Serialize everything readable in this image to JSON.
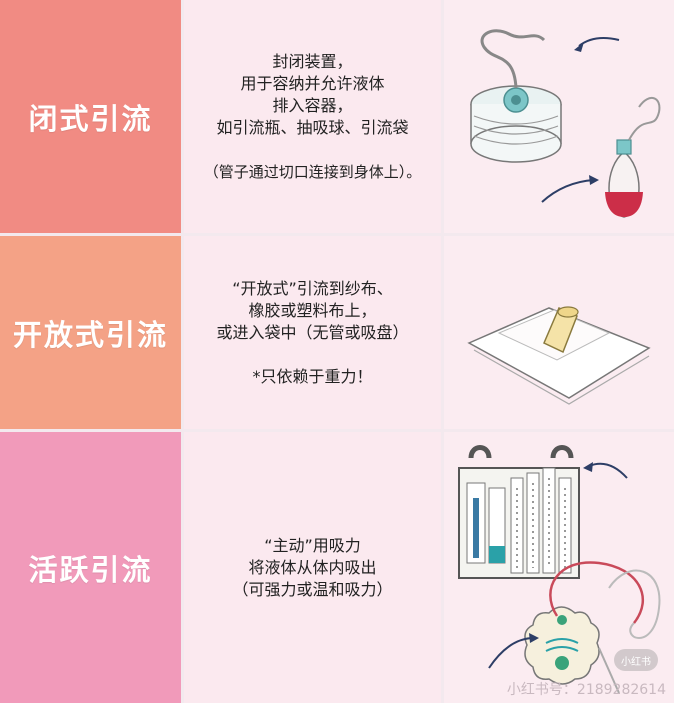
{
  "rows": [
    {
      "label": "闭式引流",
      "lines": [
        "封闭装置，",
        "用于容纳并允许液体",
        "排入容器，",
        "如引流瓶、抽吸球、引流袋"
      ],
      "note": "（管子通过切口连接到身体上）。",
      "color": "#f18b83",
      "image": "closed-drainage-illustration"
    },
    {
      "label": "开放式引流",
      "lines": [
        "“开放式”引流到纱布、",
        "橡胶或塑料布上，",
        "或进入袋中（无管或吸盘）"
      ],
      "note": "*只依赖于重力！",
      "color": "#f4a286",
      "image": "open-drainage-illustration"
    },
    {
      "label": "活跃引流",
      "lines": [
        "“主动”用吸力",
        "将液体从体内吸出",
        "（可强力或温和吸力）"
      ],
      "note": "",
      "color": "#f19aba",
      "image": "active-drainage-illustration"
    }
  ],
  "watermark": {
    "badge": "小红书",
    "text": "小红书号：2189282614"
  }
}
